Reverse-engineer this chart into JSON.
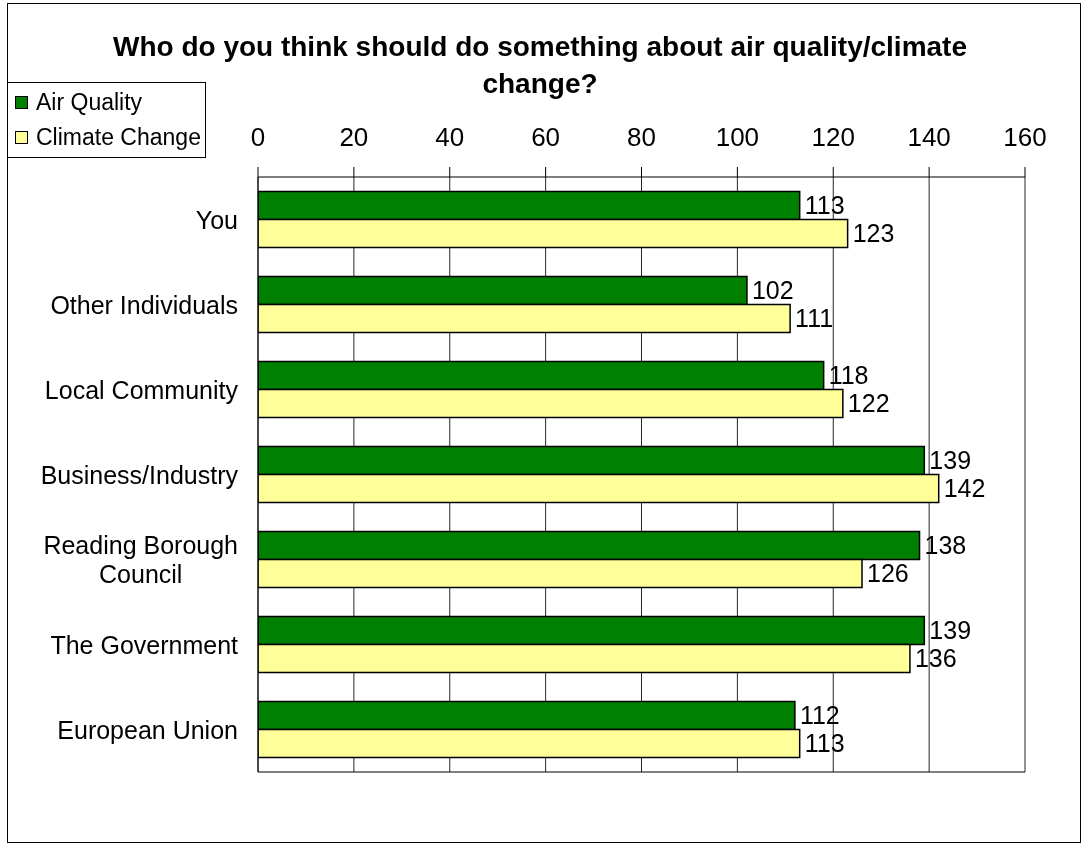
{
  "chart_data": {
    "type": "bar",
    "orientation": "horizontal",
    "title": "Who do you think should do something about air quality/climate change?",
    "categories": [
      "You",
      "Other Individuals",
      "Local Community",
      "Business/Industry",
      "Reading Borough Council",
      "The Government",
      "European Union"
    ],
    "series": [
      {
        "name": "Air Quality",
        "color": "#008000",
        "values": [
          113,
          102,
          118,
          139,
          138,
          139,
          112
        ]
      },
      {
        "name": "Climate Change",
        "color": "#ffff99",
        "values": [
          123,
          111,
          122,
          142,
          126,
          136,
          113
        ]
      }
    ],
    "xlim": [
      0,
      160
    ],
    "xticks": [
      0,
      20,
      40,
      60,
      80,
      100,
      120,
      140,
      160
    ],
    "grid": "x",
    "legend": "top left",
    "data_labels": true
  }
}
